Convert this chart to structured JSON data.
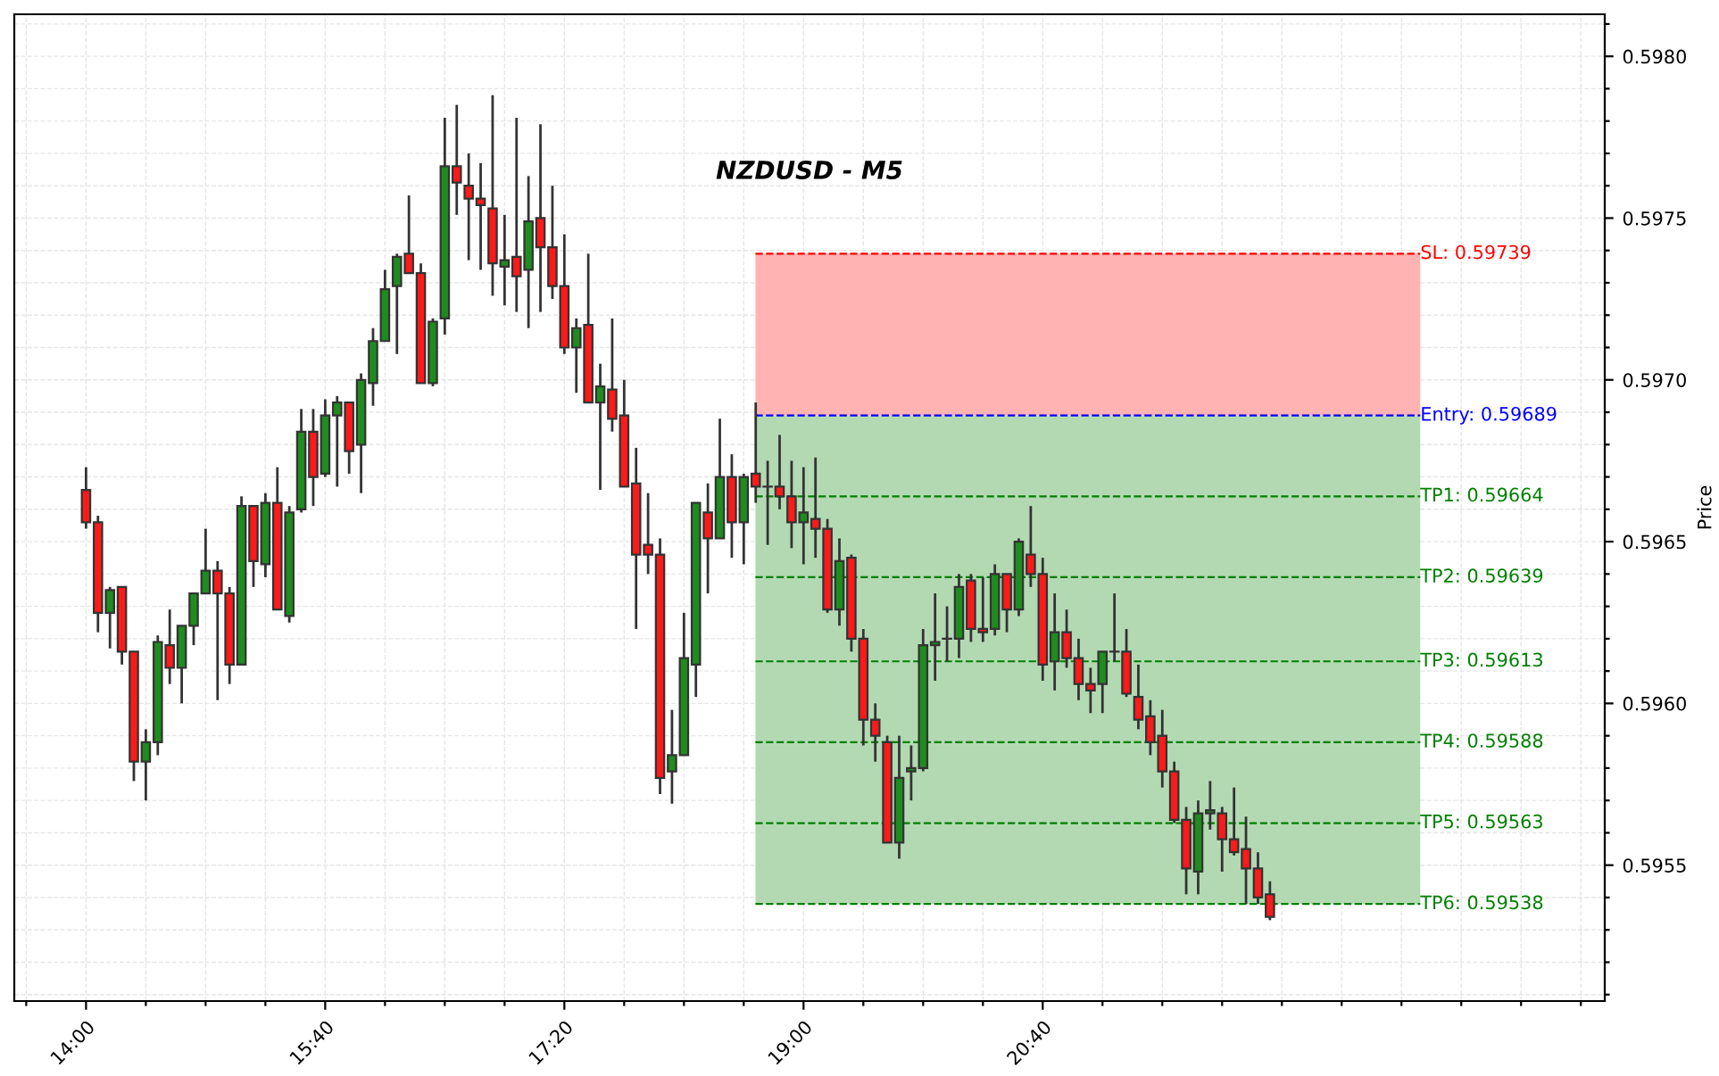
{
  "chart_data": {
    "type": "candlestick",
    "title": "NZDUSD - M5",
    "ylabel": "Price",
    "x": [
      14.0,
      14.0833,
      14.1667,
      14.25,
      14.3333,
      14.4167,
      14.5,
      14.5833,
      14.6667,
      14.75,
      14.8333,
      14.9167,
      15.0,
      15.0833,
      15.1667,
      15.25,
      15.3333,
      15.4167,
      15.5,
      15.5833,
      15.6667,
      15.75,
      15.8333,
      15.9167,
      16.0,
      16.0833,
      16.1667,
      16.25,
      16.3333,
      16.4167,
      16.5,
      16.5833,
      16.6667,
      16.75,
      16.8333,
      16.9167,
      17.0,
      17.0833,
      17.1667,
      17.25,
      17.3333,
      17.4167,
      17.5,
      17.5833,
      17.6667,
      17.75,
      17.8333,
      17.9167,
      18.0,
      18.0833,
      18.1667,
      18.25,
      18.3333,
      18.4167,
      18.5,
      18.5833,
      18.6667,
      18.75,
      18.8333,
      18.9167,
      19.0,
      19.0833,
      19.1667,
      19.25,
      19.3333,
      19.4167,
      19.5,
      19.5833,
      19.6667,
      19.75,
      19.8333,
      19.9167,
      20.0,
      20.0833,
      20.1667,
      20.25,
      20.3333,
      20.4167,
      20.5,
      20.5833,
      20.6667,
      20.75,
      20.8333,
      20.9167,
      21.0,
      21.0833,
      21.1667,
      21.25,
      21.3333,
      21.4167,
      21.5,
      21.5833,
      21.6667,
      21.75,
      21.8333,
      21.9167,
      22.0,
      22.0833,
      22.1667,
      22.25
    ],
    "ohlc": [
      [
        0.59666,
        0.59673,
        0.59654,
        0.59656
      ],
      [
        0.59656,
        0.59658,
        0.59622,
        0.59628
      ],
      [
        0.59628,
        0.59636,
        0.59617,
        0.59635
      ],
      [
        0.59636,
        0.59636,
        0.59612,
        0.59616
      ],
      [
        0.59616,
        0.59616,
        0.59576,
        0.59582
      ],
      [
        0.59582,
        0.59592,
        0.5957,
        0.59588
      ],
      [
        0.59588,
        0.59621,
        0.59584,
        0.59619
      ],
      [
        0.59618,
        0.59629,
        0.59606,
        0.59611
      ],
      [
        0.59611,
        0.59624,
        0.596,
        0.59624
      ],
      [
        0.59624,
        0.59634,
        0.59618,
        0.59634
      ],
      [
        0.59634,
        0.59654,
        0.59634,
        0.59641
      ],
      [
        0.59641,
        0.59644,
        0.59601,
        0.59634
      ],
      [
        0.59634,
        0.59636,
        0.59606,
        0.59612
      ],
      [
        0.59612,
        0.59664,
        0.59612,
        0.59661
      ],
      [
        0.59661,
        0.59661,
        0.59636,
        0.59644
      ],
      [
        0.59643,
        0.59665,
        0.59639,
        0.59662
      ],
      [
        0.59662,
        0.59673,
        0.59629,
        0.59629
      ],
      [
        0.59627,
        0.59661,
        0.59625,
        0.59659
      ],
      [
        0.5966,
        0.59691,
        0.59659,
        0.59684
      ],
      [
        0.59684,
        0.59691,
        0.59661,
        0.5967
      ],
      [
        0.59671,
        0.59694,
        0.5967,
        0.59689
      ],
      [
        0.59689,
        0.59695,
        0.59667,
        0.59693
      ],
      [
        0.59693,
        0.59693,
        0.59671,
        0.59678
      ],
      [
        0.5968,
        0.59702,
        0.59665,
        0.597
      ],
      [
        0.59699,
        0.59716,
        0.59692,
        0.59712
      ],
      [
        0.59712,
        0.59734,
        0.59712,
        0.59728
      ],
      [
        0.59729,
        0.59739,
        0.59708,
        0.59738
      ],
      [
        0.59739,
        0.59757,
        0.59733,
        0.59733
      ],
      [
        0.59733,
        0.59736,
        0.59699,
        0.59699
      ],
      [
        0.59699,
        0.59719,
        0.59698,
        0.59718
      ],
      [
        0.59719,
        0.59781,
        0.59714,
        0.59766
      ],
      [
        0.59766,
        0.59785,
        0.59751,
        0.59761
      ],
      [
        0.5976,
        0.5977,
        0.59737,
        0.59756
      ],
      [
        0.59756,
        0.59767,
        0.59734,
        0.59754
      ],
      [
        0.59753,
        0.59788,
        0.59726,
        0.59736
      ],
      [
        0.59735,
        0.59751,
        0.59723,
        0.59737
      ],
      [
        0.59738,
        0.59781,
        0.59721,
        0.59732
      ],
      [
        0.59734,
        0.59763,
        0.59716,
        0.59749
      ],
      [
        0.5975,
        0.59779,
        0.59721,
        0.59741
      ],
      [
        0.59741,
        0.5976,
        0.59725,
        0.59729
      ],
      [
        0.59729,
        0.59745,
        0.59708,
        0.5971
      ],
      [
        0.5971,
        0.59719,
        0.59696,
        0.59716
      ],
      [
        0.59717,
        0.59739,
        0.59693,
        0.59693
      ],
      [
        0.59693,
        0.59705,
        0.59666,
        0.59698
      ],
      [
        0.59697,
        0.59719,
        0.59684,
        0.59688
      ],
      [
        0.59689,
        0.597,
        0.59667,
        0.59667
      ],
      [
        0.59668,
        0.59679,
        0.59623,
        0.59646
      ],
      [
        0.59649,
        0.59665,
        0.5964,
        0.59646
      ],
      [
        0.59646,
        0.59651,
        0.59572,
        0.59577
      ],
      [
        0.59579,
        0.59598,
        0.59569,
        0.59584
      ],
      [
        0.59584,
        0.59628,
        0.59584,
        0.59614
      ],
      [
        0.59612,
        0.59662,
        0.59602,
        0.59662
      ],
      [
        0.59659,
        0.59668,
        0.59634,
        0.59651
      ],
      [
        0.59651,
        0.59688,
        0.59651,
        0.5967
      ],
      [
        0.5967,
        0.59677,
        0.59645,
        0.59656
      ],
      [
        0.59656,
        0.59671,
        0.59643,
        0.5967
      ],
      [
        0.59671,
        0.59693,
        0.59662,
        0.59667
      ],
      [
        0.59667,
        0.59675,
        0.59649,
        0.59667
      ],
      [
        0.59667,
        0.59683,
        0.5966,
        0.59664
      ],
      [
        0.59664,
        0.59675,
        0.59648,
        0.59656
      ],
      [
        0.59656,
        0.59673,
        0.59643,
        0.59659
      ],
      [
        0.59657,
        0.59676,
        0.59645,
        0.59654
      ],
      [
        0.59654,
        0.59657,
        0.59628,
        0.59629
      ],
      [
        0.59629,
        0.59651,
        0.59624,
        0.59644
      ],
      [
        0.59645,
        0.59646,
        0.59616,
        0.5962
      ],
      [
        0.5962,
        0.59623,
        0.59587,
        0.59595
      ],
      [
        0.59595,
        0.596,
        0.59582,
        0.5959
      ],
      [
        0.59588,
        0.5959,
        0.59557,
        0.59557
      ],
      [
        0.59557,
        0.5959,
        0.59552,
        0.59577
      ],
      [
        0.59579,
        0.59587,
        0.5957,
        0.5958
      ],
      [
        0.5958,
        0.59623,
        0.59579,
        0.59618
      ],
      [
        0.59618,
        0.59634,
        0.59607,
        0.59619
      ],
      [
        0.5962,
        0.5963,
        0.59613,
        0.5962
      ],
      [
        0.5962,
        0.5964,
        0.59614,
        0.59636
      ],
      [
        0.59638,
        0.5964,
        0.59619,
        0.59623
      ],
      [
        0.59623,
        0.59639,
        0.59619,
        0.59622
      ],
      [
        0.59623,
        0.59643,
        0.59621,
        0.5964
      ],
      [
        0.5964,
        0.5964,
        0.59622,
        0.59629
      ],
      [
        0.59629,
        0.59651,
        0.59627,
        0.5965
      ],
      [
        0.59646,
        0.59661,
        0.59636,
        0.5964
      ],
      [
        0.5964,
        0.59645,
        0.59607,
        0.59612
      ],
      [
        0.59613,
        0.59634,
        0.59604,
        0.59622
      ],
      [
        0.59622,
        0.59629,
        0.59611,
        0.59614
      ],
      [
        0.59614,
        0.5962,
        0.59601,
        0.59606
      ],
      [
        0.59606,
        0.59611,
        0.59597,
        0.59604
      ],
      [
        0.59606,
        0.59616,
        0.59597,
        0.59616
      ],
      [
        0.59616,
        0.59634,
        0.59613,
        0.59616
      ],
      [
        0.59616,
        0.59623,
        0.59602,
        0.59603
      ],
      [
        0.59602,
        0.59612,
        0.59592,
        0.59595
      ],
      [
        0.59596,
        0.59601,
        0.59584,
        0.59588
      ],
      [
        0.5959,
        0.59598,
        0.59574,
        0.59579
      ],
      [
        0.59579,
        0.59582,
        0.59563,
        0.59564
      ],
      [
        0.59564,
        0.59568,
        0.59541,
        0.59549
      ],
      [
        0.59548,
        0.5957,
        0.59541,
        0.59566
      ],
      [
        0.59566,
        0.59576,
        0.59561,
        0.59567
      ],
      [
        0.59566,
        0.59568,
        0.59548,
        0.59558
      ],
      [
        0.59558,
        0.59574,
        0.59553,
        0.59554
      ],
      [
        0.59555,
        0.59565,
        0.59538,
        0.59549
      ],
      [
        0.59549,
        0.59554,
        0.59538,
        0.5954
      ],
      [
        0.59541,
        0.59545,
        0.59533,
        0.59534
      ]
    ],
    "colors": [
      "#ff1a1a",
      "#ff1a1a",
      "#1e8c1e",
      "#ff1a1a",
      "#ff1a1a",
      "#1e8c1e",
      "#1e8c1e",
      "#ff1a1a",
      "#1e8c1e",
      "#1e8c1e",
      "#1e8c1e",
      "#ff1a1a",
      "#ff1a1a",
      "#1e8c1e",
      "#ff1a1a",
      "#1e8c1e",
      "#ff1a1a",
      "#1e8c1e",
      "#1e8c1e",
      "#ff1a1a",
      "#1e8c1e",
      "#1e8c1e",
      "#ff1a1a",
      "#1e8c1e",
      "#1e8c1e",
      "#1e8c1e",
      "#1e8c1e",
      "#ff1a1a",
      "#ff1a1a",
      "#1e8c1e",
      "#1e8c1e",
      "#ff1a1a",
      "#ff1a1a",
      "#ff1a1a",
      "#ff1a1a",
      "#1e8c1e",
      "#ff1a1a",
      "#1e8c1e",
      "#ff1a1a",
      "#ff1a1a",
      "#ff1a1a",
      "#1e8c1e",
      "#ff1a1a",
      "#1e8c1e",
      "#ff1a1a",
      "#ff1a1a",
      "#ff1a1a",
      "#ff1a1a",
      "#ff1a1a",
      "#1e8c1e",
      "#1e8c1e",
      "#1e8c1e",
      "#ff1a1a",
      "#1e8c1e",
      "#ff1a1a",
      "#1e8c1e",
      "#ff1a1a",
      "#1e8c1e",
      "#ff1a1a",
      "#ff1a1a",
      "#1e8c1e",
      "#ff1a1a",
      "#ff1a1a",
      "#1e8c1e",
      "#ff1a1a",
      "#ff1a1a",
      "#ff1a1a",
      "#ff1a1a",
      "#1e8c1e",
      "#1e8c1e",
      "#1e8c1e",
      "#1e8c1e",
      "#1e8c1e",
      "#1e8c1e",
      "#ff1a1a",
      "#ff1a1a",
      "#1e8c1e",
      "#ff1a1a",
      "#1e8c1e",
      "#ff1a1a",
      "#ff1a1a",
      "#1e8c1e",
      "#ff1a1a",
      "#ff1a1a",
      "#ff1a1a",
      "#1e8c1e",
      "#1e8c1e",
      "#ff1a1a",
      "#ff1a1a",
      "#ff1a1a",
      "#ff1a1a",
      "#ff1a1a",
      "#ff1a1a",
      "#1e8c1e",
      "#1e8c1e",
      "#ff1a1a",
      "#ff1a1a",
      "#ff1a1a",
      "#ff1a1a",
      "#ff1a1a"
    ],
    "xlim": [
      13.5,
      24.5833
    ],
    "xticks": [
      {
        "value": 13.5833,
        "label": null
      },
      {
        "value": 14,
        "label": "14:00"
      },
      {
        "value": 14.4167,
        "label": null
      },
      {
        "value": 14.8333,
        "label": null
      },
      {
        "value": 15.25,
        "label": null
      },
      {
        "value": 15.6667,
        "label": "15:40"
      },
      {
        "value": 16.0833,
        "label": null
      },
      {
        "value": 16.5,
        "label": null
      },
      {
        "value": 16.9167,
        "label": null
      },
      {
        "value": 17.3333,
        "label": "17:20"
      },
      {
        "value": 17.75,
        "label": null
      },
      {
        "value": 18.1667,
        "label": null
      },
      {
        "value": 18.5833,
        "label": null
      },
      {
        "value": 19,
        "label": "19:00"
      },
      {
        "value": 19.4167,
        "label": null
      },
      {
        "value": 19.8333,
        "label": null
      },
      {
        "value": 20.25,
        "label": null
      },
      {
        "value": 20.6667,
        "label": "20:40"
      },
      {
        "value": 21.0833,
        "label": null
      },
      {
        "value": 21.5,
        "label": null
      },
      {
        "value": 21.9167,
        "label": null
      },
      {
        "value": 22.3333,
        "label": null
      },
      {
        "value": 22.75,
        "label": null
      },
      {
        "value": 23.1667,
        "label": null
      },
      {
        "value": 23.5833,
        "label": null
      },
      {
        "value": 24,
        "label": null
      },
      {
        "value": 24.4167,
        "label": null
      }
    ],
    "ylim": [
      0.59508,
      0.59813
    ],
    "yticks": [
      {
        "value": 0.5951,
        "label": null
      },
      {
        "value": 0.5952,
        "label": null
      },
      {
        "value": 0.5953,
        "label": null
      },
      {
        "value": 0.5954,
        "label": null
      },
      {
        "value": 0.5955,
        "label": "0.5955"
      },
      {
        "value": 0.5956,
        "label": null
      },
      {
        "value": 0.5957,
        "label": null
      },
      {
        "value": 0.5958,
        "label": null
      },
      {
        "value": 0.5959,
        "label": null
      },
      {
        "value": 0.596,
        "label": "0.5960"
      },
      {
        "value": 0.5961,
        "label": null
      },
      {
        "value": 0.5962,
        "label": null
      },
      {
        "value": 0.5963,
        "label": null
      },
      {
        "value": 0.5964,
        "label": null
      },
      {
        "value": 0.5965,
        "label": "0.5965"
      },
      {
        "value": 0.5966,
        "label": null
      },
      {
        "value": 0.5967,
        "label": null
      },
      {
        "value": 0.5968,
        "label": null
      },
      {
        "value": 0.5969,
        "label": null
      },
      {
        "value": 0.597,
        "label": "0.5970"
      },
      {
        "value": 0.5971,
        "label": null
      },
      {
        "value": 0.5972,
        "label": null
      },
      {
        "value": 0.5973,
        "label": null
      },
      {
        "value": 0.5974,
        "label": null
      },
      {
        "value": 0.5975,
        "label": "0.5975"
      },
      {
        "value": 0.5976,
        "label": null
      },
      {
        "value": 0.5977,
        "label": null
      },
      {
        "value": 0.5978,
        "label": null
      },
      {
        "value": 0.5979,
        "label": null
      },
      {
        "value": 0.598,
        "label": "0.5980"
      },
      {
        "value": 0.5981,
        "label": null
      }
    ],
    "grid": true,
    "bands": [
      {
        "axis": "y",
        "from": 0.59689,
        "to": 0.59739,
        "color": "#ffb3b3"
      },
      {
        "axis": "y",
        "from": 0.59538,
        "to": 0.59689,
        "color": "#b3d9b3"
      }
    ],
    "ref_lines": [
      {
        "axis": "y",
        "value": 0.59739,
        "label": "SL: 0.59739",
        "color": "#ff0000",
        "line_style": "dashed"
      },
      {
        "axis": "y",
        "value": 0.59689,
        "label": "Entry: 0.59689",
        "color": "#0000ff",
        "line_style": "dashed"
      },
      {
        "axis": "y",
        "value": 0.59664,
        "label": "TP1: 0.59664",
        "color": "#008000",
        "line_style": "dashed"
      },
      {
        "axis": "y",
        "value": 0.59639,
        "label": "TP2: 0.59639",
        "color": "#008000",
        "line_style": "dashed"
      },
      {
        "axis": "y",
        "value": 0.59613,
        "label": "TP3: 0.59613",
        "color": "#008000",
        "line_style": "dashed"
      },
      {
        "axis": "y",
        "value": 0.59588,
        "label": "TP4: 0.59588",
        "color": "#008000",
        "line_style": "dashed"
      },
      {
        "axis": "y",
        "value": 0.59563,
        "label": "TP5: 0.59563",
        "color": "#008000",
        "line_style": "dashed"
      },
      {
        "axis": "y",
        "value": 0.59538,
        "label": "TP6: 0.59538",
        "color": "#008000",
        "line_style": "dashed"
      }
    ]
  }
}
